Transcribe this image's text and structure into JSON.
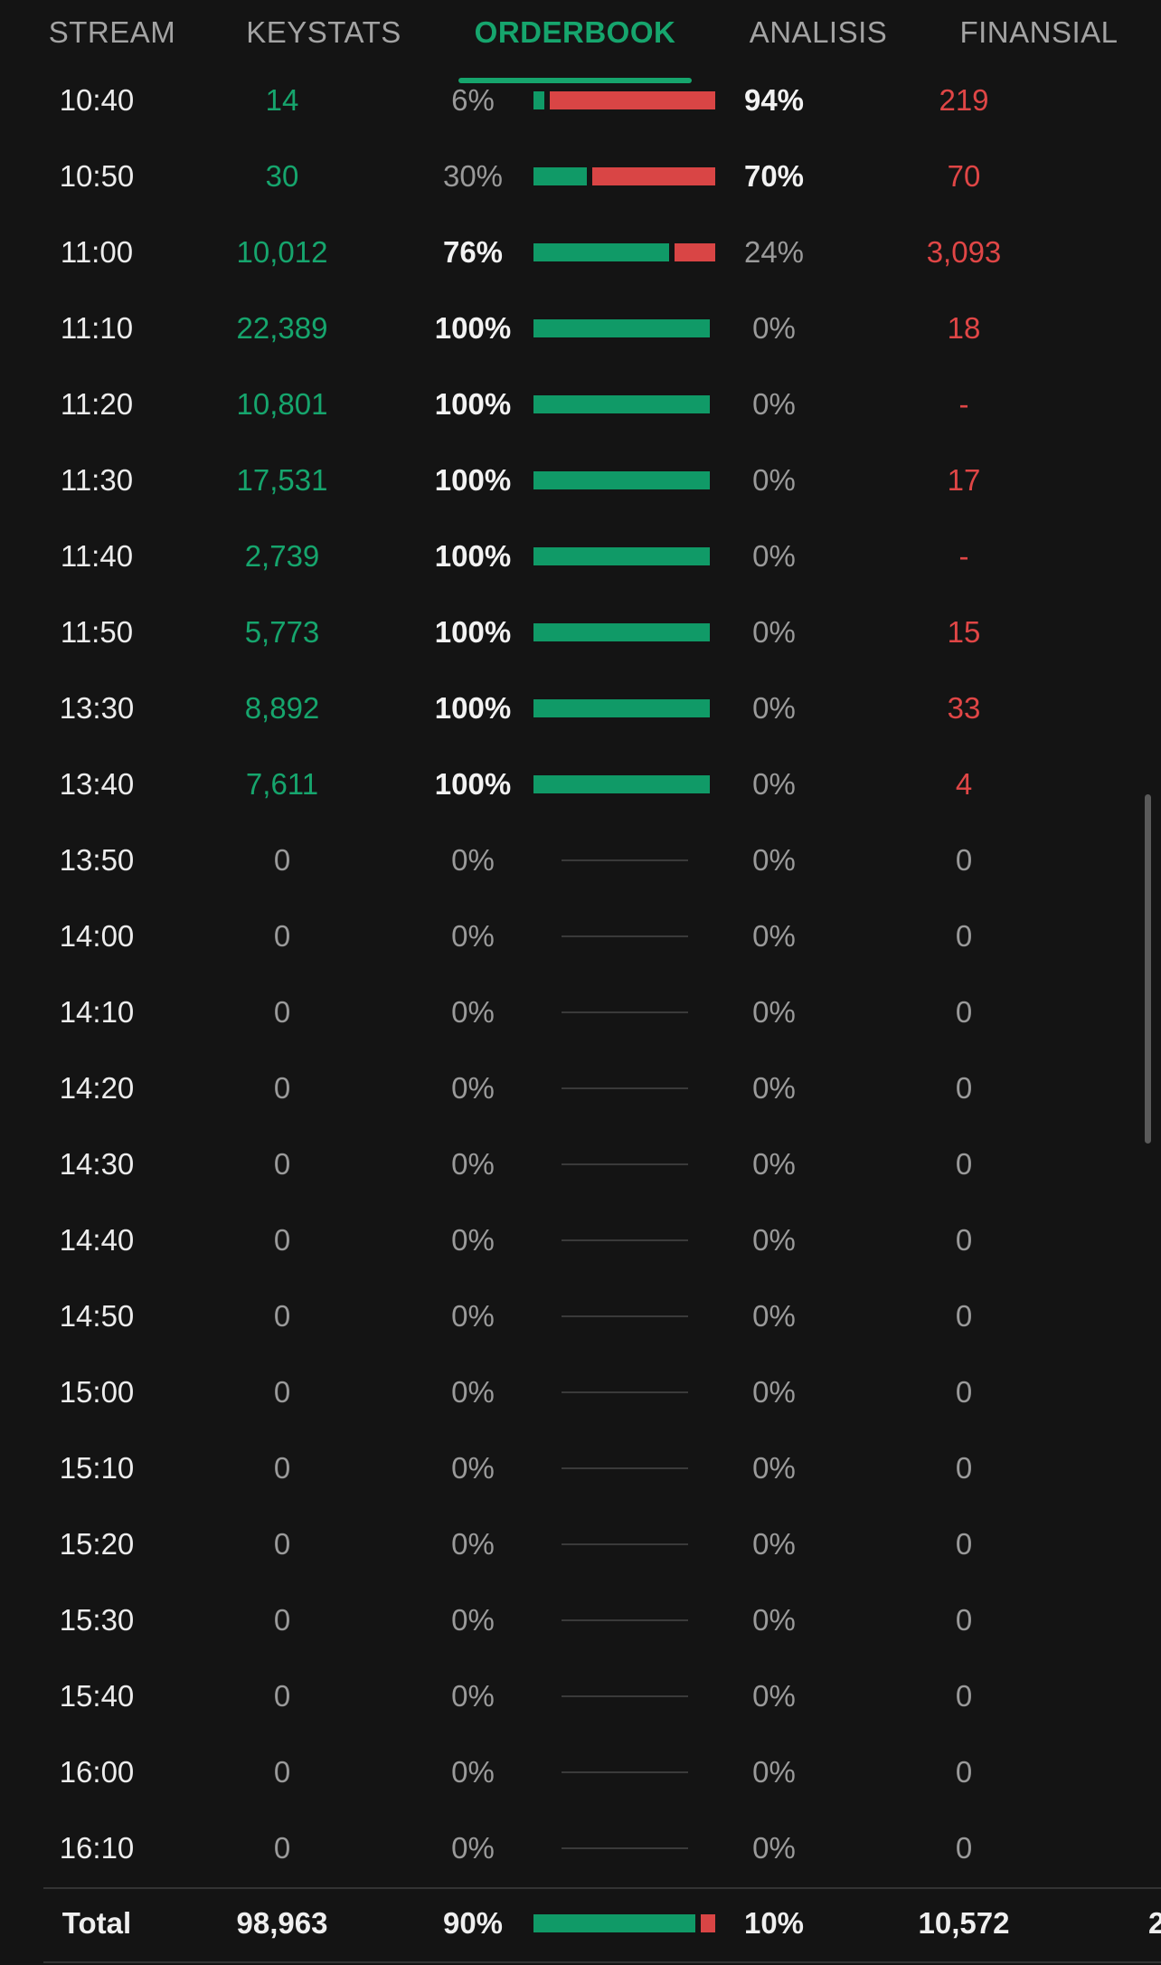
{
  "tabs": [
    {
      "label": "STREAM",
      "active": false
    },
    {
      "label": "KEYSTATS",
      "active": false
    },
    {
      "label": "ORDERBOOK",
      "active": true
    },
    {
      "label": "ANALISIS",
      "active": false
    },
    {
      "label": "FINANSIAL",
      "active": false
    }
  ],
  "rows": [
    {
      "time": "10:40",
      "buy": "14",
      "buy_pct": "6%",
      "sell_pct": "94%",
      "sell": "219",
      "buy_share": 0.06
    },
    {
      "time": "10:50",
      "buy": "30",
      "buy_pct": "30%",
      "sell_pct": "70%",
      "sell": "70",
      "buy_share": 0.3
    },
    {
      "time": "11:00",
      "buy": "10,012",
      "buy_pct": "76%",
      "sell_pct": "24%",
      "sell": "3,093",
      "buy_share": 0.76
    },
    {
      "time": "11:10",
      "buy": "22,389",
      "buy_pct": "100%",
      "sell_pct": "0%",
      "sell": "18",
      "buy_share": 1.0
    },
    {
      "time": "11:20",
      "buy": "10,801",
      "buy_pct": "100%",
      "sell_pct": "0%",
      "sell": "-",
      "buy_share": 1.0
    },
    {
      "time": "11:30",
      "buy": "17,531",
      "buy_pct": "100%",
      "sell_pct": "0%",
      "sell": "17",
      "buy_share": 1.0
    },
    {
      "time": "11:40",
      "buy": "2,739",
      "buy_pct": "100%",
      "sell_pct": "0%",
      "sell": "-",
      "buy_share": 1.0
    },
    {
      "time": "11:50",
      "buy": "5,773",
      "buy_pct": "100%",
      "sell_pct": "0%",
      "sell": "15",
      "buy_share": 1.0
    },
    {
      "time": "13:30",
      "buy": "8,892",
      "buy_pct": "100%",
      "sell_pct": "0%",
      "sell": "33",
      "buy_share": 1.0
    },
    {
      "time": "13:40",
      "buy": "7,611",
      "buy_pct": "100%",
      "sell_pct": "0%",
      "sell": "4",
      "buy_share": 1.0
    },
    {
      "time": "13:50",
      "buy": "0",
      "buy_pct": "0%",
      "sell_pct": "0%",
      "sell": "0",
      "buy_share": null
    },
    {
      "time": "14:00",
      "buy": "0",
      "buy_pct": "0%",
      "sell_pct": "0%",
      "sell": "0",
      "buy_share": null
    },
    {
      "time": "14:10",
      "buy": "0",
      "buy_pct": "0%",
      "sell_pct": "0%",
      "sell": "0",
      "buy_share": null
    },
    {
      "time": "14:20",
      "buy": "0",
      "buy_pct": "0%",
      "sell_pct": "0%",
      "sell": "0",
      "buy_share": null
    },
    {
      "time": "14:30",
      "buy": "0",
      "buy_pct": "0%",
      "sell_pct": "0%",
      "sell": "0",
      "buy_share": null
    },
    {
      "time": "14:40",
      "buy": "0",
      "buy_pct": "0%",
      "sell_pct": "0%",
      "sell": "0",
      "buy_share": null
    },
    {
      "time": "14:50",
      "buy": "0",
      "buy_pct": "0%",
      "sell_pct": "0%",
      "sell": "0",
      "buy_share": null
    },
    {
      "time": "15:00",
      "buy": "0",
      "buy_pct": "0%",
      "sell_pct": "0%",
      "sell": "0",
      "buy_share": null
    },
    {
      "time": "15:10",
      "buy": "0",
      "buy_pct": "0%",
      "sell_pct": "0%",
      "sell": "0",
      "buy_share": null
    },
    {
      "time": "15:20",
      "buy": "0",
      "buy_pct": "0%",
      "sell_pct": "0%",
      "sell": "0",
      "buy_share": null
    },
    {
      "time": "15:30",
      "buy": "0",
      "buy_pct": "0%",
      "sell_pct": "0%",
      "sell": "0",
      "buy_share": null
    },
    {
      "time": "15:40",
      "buy": "0",
      "buy_pct": "0%",
      "sell_pct": "0%",
      "sell": "0",
      "buy_share": null
    },
    {
      "time": "16:00",
      "buy": "0",
      "buy_pct": "0%",
      "sell_pct": "0%",
      "sell": "0",
      "buy_share": null
    },
    {
      "time": "16:10",
      "buy": "0",
      "buy_pct": "0%",
      "sell_pct": "0%",
      "sell": "0",
      "buy_share": null
    }
  ],
  "total": {
    "label": "Total",
    "buy": "98,963",
    "buy_pct": "90%",
    "sell_pct": "10%",
    "sell": "10,572",
    "buy_share": 0.9,
    "overflow_text": "2"
  },
  "colors": {
    "background": "#141414",
    "buy": "#16a56d",
    "sell": "#e04646",
    "active_tab": "#16a56d",
    "inactive_tab": "#a3a3a3"
  }
}
